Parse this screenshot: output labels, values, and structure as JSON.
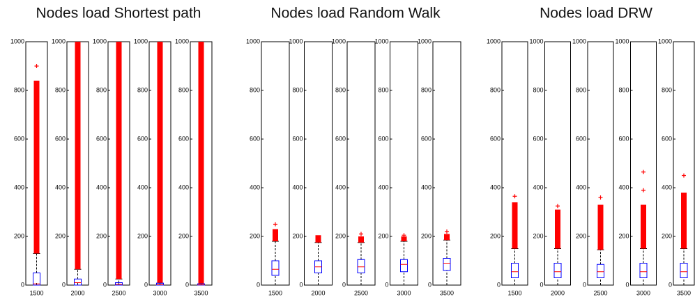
{
  "chart_data": [
    {
      "type": "box",
      "title": "Nodes load Shortest path",
      "categories": [
        "1500",
        "2000",
        "2500",
        "3000",
        "3500"
      ],
      "ylim": [
        0,
        1000
      ],
      "yticks": [
        0,
        200,
        400,
        600,
        800,
        1000
      ],
      "box_color": "#0000ff",
      "median_color": "#ff0000",
      "outlier_color": "#ff0000",
      "boxes": [
        {
          "whisker_low": 0,
          "q1": 0,
          "median": 5,
          "q3": 50,
          "whisker_high": 130,
          "outlier_band": [
            130,
            840
          ],
          "outliers": [
            900
          ]
        },
        {
          "whisker_low": 0,
          "q1": 0,
          "median": 10,
          "q3": 25,
          "whisker_high": 65,
          "outlier_band": [
            65,
            1000
          ],
          "outliers": []
        },
        {
          "whisker_low": 0,
          "q1": 0,
          "median": 3,
          "q3": 10,
          "whisker_high": 25,
          "outlier_band": [
            25,
            1000
          ],
          "outliers": []
        },
        {
          "whisker_low": 0,
          "q1": 0,
          "median": 2,
          "q3": 8,
          "whisker_high": 8,
          "outlier_band": [
            8,
            1000
          ],
          "outliers": []
        },
        {
          "whisker_low": 0,
          "q1": 0,
          "median": 1,
          "q3": 5,
          "whisker_high": 5,
          "outlier_band": [
            5,
            1000
          ],
          "outliers": []
        }
      ]
    },
    {
      "type": "box",
      "title": "Nodes load Random Walk",
      "categories": [
        "1500",
        "2000",
        "2500",
        "3000",
        "3500"
      ],
      "ylim": [
        0,
        1000
      ],
      "yticks": [
        0,
        200,
        400,
        600,
        800,
        1000
      ],
      "box_color": "#0000ff",
      "median_color": "#ff0000",
      "outlier_color": "#ff0000",
      "boxes": [
        {
          "whisker_low": 0,
          "q1": 40,
          "median": 65,
          "q3": 100,
          "whisker_high": 180,
          "outlier_band": [
            180,
            230
          ],
          "outliers": [
            250
          ]
        },
        {
          "whisker_low": 0,
          "q1": 50,
          "median": 75,
          "q3": 100,
          "whisker_high": 175,
          "outlier_band": [
            175,
            205
          ],
          "outliers": []
        },
        {
          "whisker_low": 0,
          "q1": 50,
          "median": 75,
          "q3": 105,
          "whisker_high": 175,
          "outlier_band": [
            175,
            200
          ],
          "outliers": [
            210
          ]
        },
        {
          "whisker_low": 0,
          "q1": 55,
          "median": 85,
          "q3": 105,
          "whisker_high": 180,
          "outlier_band": [
            180,
            200
          ],
          "outliers": [
            205
          ]
        },
        {
          "whisker_low": 0,
          "q1": 60,
          "median": 90,
          "q3": 110,
          "whisker_high": 185,
          "outlier_band": [
            185,
            210
          ],
          "outliers": [
            220
          ]
        }
      ]
    },
    {
      "type": "box",
      "title": "Nodes load DRW",
      "categories": [
        "1500",
        "2000",
        "2500",
        "3000",
        "3500"
      ],
      "ylim": [
        0,
        1000
      ],
      "yticks": [
        0,
        200,
        400,
        600,
        800,
        1000
      ],
      "box_color": "#0000ff",
      "median_color": "#ff0000",
      "outlier_color": "#ff0000",
      "boxes": [
        {
          "whisker_low": 0,
          "q1": 30,
          "median": 55,
          "q3": 90,
          "whisker_high": 150,
          "outlier_band": [
            150,
            340
          ],
          "outliers": [
            365
          ]
        },
        {
          "whisker_low": 0,
          "q1": 30,
          "median": 55,
          "q3": 90,
          "whisker_high": 150,
          "outlier_band": [
            150,
            310
          ],
          "outliers": [
            325
          ]
        },
        {
          "whisker_low": 0,
          "q1": 30,
          "median": 55,
          "q3": 85,
          "whisker_high": 145,
          "outlier_band": [
            145,
            330
          ],
          "outliers": [
            360
          ]
        },
        {
          "whisker_low": 0,
          "q1": 30,
          "median": 55,
          "q3": 90,
          "whisker_high": 150,
          "outlier_band": [
            150,
            330
          ],
          "outliers": [
            390,
            465
          ]
        },
        {
          "whisker_low": 0,
          "q1": 30,
          "median": 55,
          "q3": 90,
          "whisker_high": 150,
          "outlier_band": [
            150,
            380
          ],
          "outliers": [
            450
          ]
        }
      ]
    }
  ]
}
